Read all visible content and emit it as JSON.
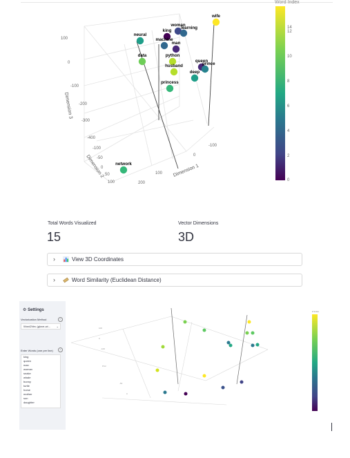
{
  "plot": {
    "colorbar_title": "Word Index",
    "colorbar_ticks": [
      "14",
      "12",
      "10",
      "8",
      "6",
      "4",
      "2",
      "0"
    ],
    "axis_titles": {
      "x": "Dimension 1",
      "y": "Dimension 2",
      "z": "Dimension 3"
    },
    "z_ticks": [
      "100",
      "0",
      "-100",
      "-200",
      "-300",
      "-400"
    ],
    "y_ticks": [
      "-100",
      "-50",
      "0",
      "50",
      "100"
    ],
    "x_ticks": [
      "-100",
      "0",
      "100",
      "200",
      "30"
    ],
    "words": [
      {
        "label": "wife",
        "index": 14
      },
      {
        "label": "woman",
        "index": 3
      },
      {
        "label": "learning",
        "index": 5
      },
      {
        "label": "king",
        "index": 0
      },
      {
        "label": "neural",
        "index": 8
      },
      {
        "label": "machine",
        "index": 4
      },
      {
        "label": "man",
        "index": 2
      },
      {
        "label": "data",
        "index": 11
      },
      {
        "label": "python",
        "index": 12
      },
      {
        "label": "queen",
        "index": 1
      },
      {
        "label": "prince",
        "index": 6
      },
      {
        "label": "husband",
        "index": 13
      },
      {
        "label": "deep",
        "index": 7
      },
      {
        "label": "princess",
        "index": 10
      },
      {
        "label": "network",
        "index": 9
      }
    ]
  },
  "metrics": {
    "total_label": "Total Words Visualized",
    "total_value": "15",
    "dims_label": "Vector Dimensions",
    "dims_value": "3D"
  },
  "expanders": [
    {
      "label": "View 3D Coordinates",
      "icon": "bar-chart-icon"
    },
    {
      "label": "Word Similarity (Euclidean Distance)",
      "icon": "ruler-icon"
    }
  ],
  "screenshot": {
    "settings_title": "Settings",
    "method_label": "Vectorization Method",
    "method_value": "Word2Vec (glove-wi...",
    "words_label": "Enter Words (one per line)",
    "words": [
      "king",
      "queen",
      "man",
      "woman",
      "snake",
      "whale",
      "bunny",
      "turtle",
      "horse",
      "mother",
      "son",
      "daughter"
    ],
    "colorbar_title": "Z Index"
  }
}
